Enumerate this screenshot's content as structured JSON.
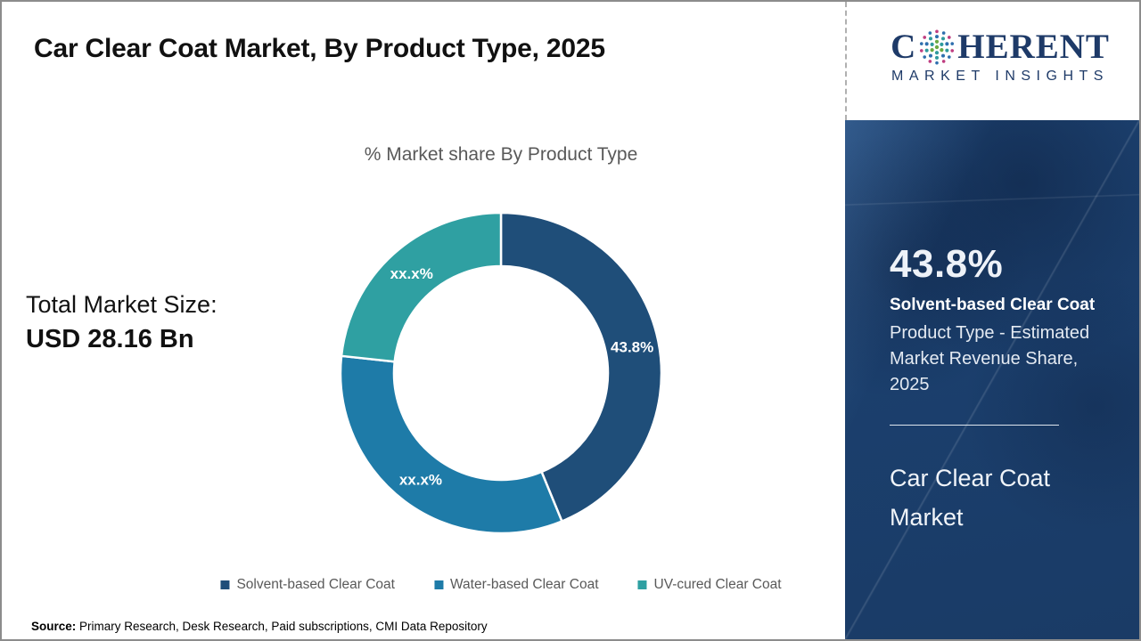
{
  "header": {
    "title": "Car Clear Coat Market, By Product Type, 2025",
    "logo": {
      "word_start": "C",
      "word_end": "HERENT",
      "tagline": "MARKET INSIGHTS",
      "color": "#1e3a68"
    }
  },
  "main": {
    "total_label": "Total Market Size:",
    "total_value": "USD 28.16 Bn",
    "source_label": "Source:",
    "source_text": " Primary Research, Desk Research, Paid subscriptions, CMI Data Repository"
  },
  "chart_data": {
    "type": "pie",
    "subtype": "donut",
    "title": "% Market share By Product Type",
    "start_angle_deg": 0,
    "direction": "clockwise",
    "hole_ratio": 0.667,
    "legend_position": "bottom",
    "segments": [
      {
        "label": "Solvent-based Clear Coat",
        "value": 43.8,
        "display": "43.8%",
        "color": "#1F4E79"
      },
      {
        "label": "Water-based Clear Coat",
        "value": 32.9,
        "display": "xx.x%",
        "color": "#1E7BA8"
      },
      {
        "label": "UV-cured Clear Coat",
        "value": 23.3,
        "display": "xx.x%",
        "color": "#2FA0A2"
      }
    ]
  },
  "sidebar": {
    "stat_value": "43.8%",
    "stat_bold": "Solvent-based Clear Coat",
    "stat_desc": "Product Type - Estimated Market Revenue Share, 2025",
    "market_title": "Car Clear Coat Market",
    "background_color": "#1b3f6d"
  }
}
